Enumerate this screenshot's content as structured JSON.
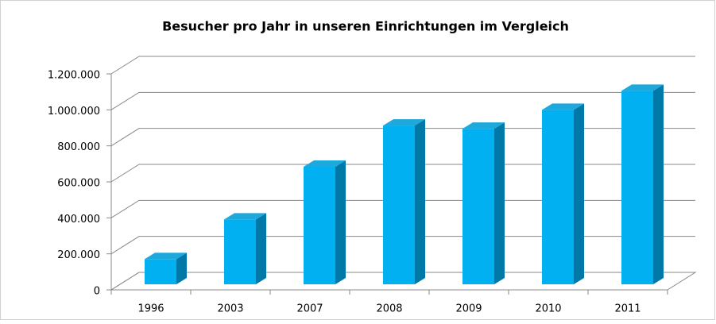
{
  "chart_data": {
    "type": "bar3d",
    "title": "Besucher pro Jahr in unseren Einrichtungen im Vergleich",
    "categories": [
      "1996",
      "2003",
      "2007",
      "2008",
      "2009",
      "2010",
      "2011"
    ],
    "values": [
      140000,
      360000,
      653000,
      882000,
      864000,
      969000,
      1075000
    ],
    "color": "#00b0f0",
    "ylim": [
      0,
      1200000
    ],
    "yticks": [
      0,
      {
        "value": 200000,
        "label": "200.000"
      },
      {
        "value": 400000,
        "label": "400.000"
      },
      {
        "value": 600000,
        "label": "600.000"
      },
      {
        "value": 800000,
        "label": "800.000"
      },
      {
        "value": 1000000,
        "label": "1.000.000"
      },
      {
        "value": 1200000,
        "label": "1.200.000"
      }
    ],
    "grid": true
  }
}
